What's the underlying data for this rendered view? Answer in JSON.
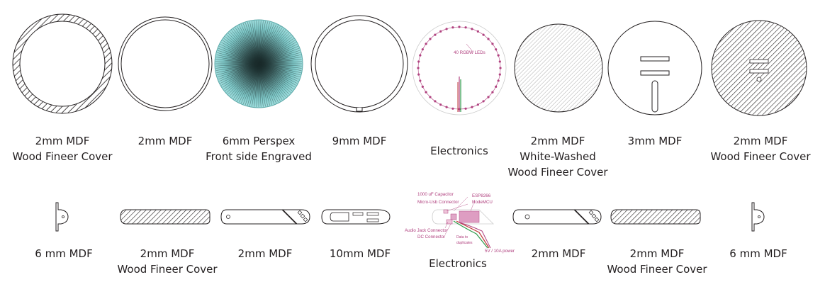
{
  "top_row": [
    {
      "line1": "2mm MDF",
      "line2": "Wood Fineer Cover"
    },
    {
      "line1": "2mm MDF"
    },
    {
      "line1": "6mm Perspex",
      "line2": "Front side Engraved"
    },
    {
      "line1": "9mm MDF"
    },
    {
      "line1": "Electronics"
    },
    {
      "line1": "2mm MDF",
      "line2": "White-Washed",
      "line3": "Wood Fineer Cover"
    },
    {
      "line1": "3mm MDF"
    },
    {
      "line1": "2mm MDF",
      "line2": "Wood Fineer Cover"
    }
  ],
  "bottom_row": [
    {
      "line1": "6 mm MDF"
    },
    {
      "line1": "2mm MDF",
      "line2": "Wood Fineer Cover"
    },
    {
      "line1": "2mm MDF"
    },
    {
      "line1": "10mm MDF"
    },
    {
      "line1": "Electronics"
    },
    {
      "line1": "2mm MDF"
    },
    {
      "line1": "2mm MDF",
      "line2": "Wood Fineer Cover"
    },
    {
      "line1": "6 mm MDF"
    }
  ],
  "annotations": {
    "leds": "40 RGBW LEDs",
    "capacitor": "1000 uF Capacitor",
    "micro_usb": "Micro-Usb Connector",
    "esp": "ESP8266",
    "nodemcu": "NodeMCU",
    "audio_jack": "Audio Jack Connector",
    "dc": "DC Connector",
    "data1": "Data to",
    "data2": "duplicates",
    "power": "5V / 10A power"
  },
  "colors": {
    "line": "#231f20",
    "accent": "#b0417f",
    "perspex": "#7ec8c8"
  }
}
